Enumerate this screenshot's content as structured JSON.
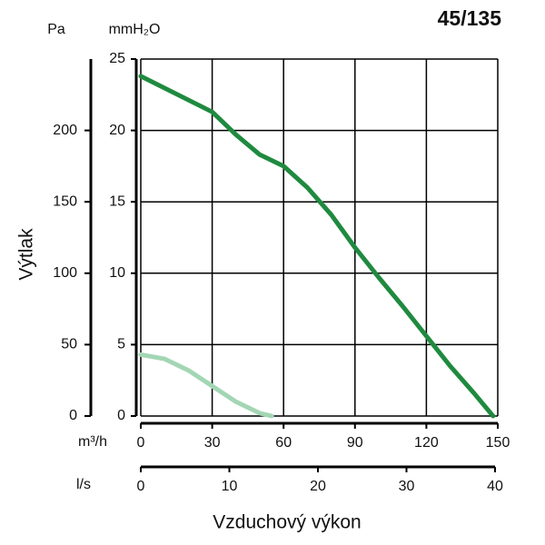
{
  "chart_data": {
    "type": "line",
    "title": "45/135",
    "xlabel": "Vzduchový výkon",
    "ylabel": "Výtlak",
    "x_unit": "m³/h",
    "x2_unit": "l/s",
    "y_unit": "mmH₂O",
    "y2_unit": "Pa",
    "xlim": [
      0,
      150
    ],
    "xticks": [
      0,
      30,
      60,
      90,
      120,
      150
    ],
    "x2lim": [
      0,
      40
    ],
    "x2ticks": [
      0,
      10,
      20,
      30,
      40
    ],
    "ylim": [
      0,
      25
    ],
    "yticks": [
      0,
      5,
      10,
      15,
      20,
      25
    ],
    "y2lim": [
      0,
      250
    ],
    "y2ticks": [
      0,
      50,
      100,
      150,
      200
    ],
    "grid": true,
    "series": [
      {
        "color": "#1f8a3f",
        "x": [
          0,
          30,
          40,
          50,
          60,
          70,
          80,
          90,
          100,
          110,
          120,
          130,
          140,
          148
        ],
        "values": [
          23.8,
          21.3,
          19.7,
          18.3,
          17.5,
          16,
          14.1,
          11.8,
          9.7,
          7.7,
          5.6,
          3.5,
          1.6,
          0
        ]
      },
      {
        "color": "#a3d6b4",
        "x": [
          0,
          10,
          20,
          30,
          40,
          50,
          55
        ],
        "values": [
          4.3,
          4.0,
          3.2,
          2.1,
          1.0,
          0.2,
          0
        ]
      }
    ]
  }
}
